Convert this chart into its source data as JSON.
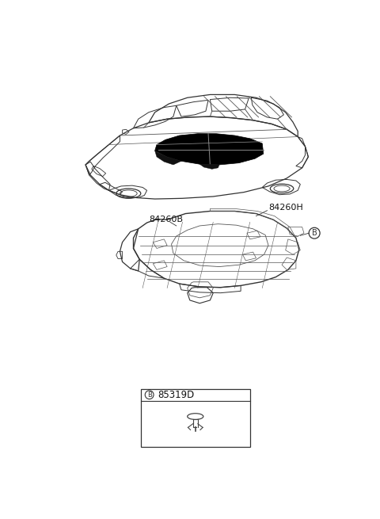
{
  "bg_color": "#ffffff",
  "label_84260H": "84260H",
  "label_84260B": "84260B",
  "label_85319D": "85319D",
  "callout_label": "B",
  "line_color": "#333333",
  "detail_color": "#555555"
}
